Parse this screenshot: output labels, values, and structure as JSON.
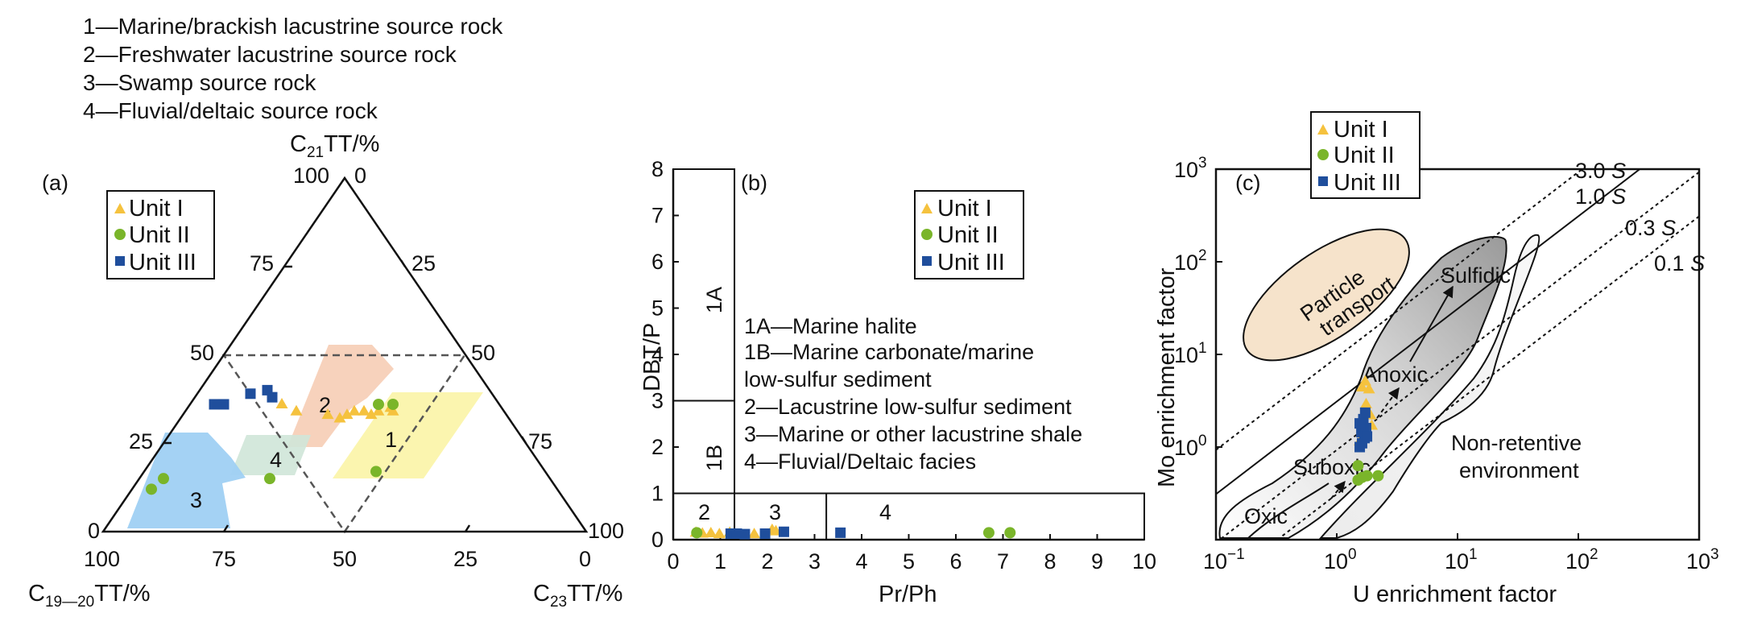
{
  "header": {
    "definitions": [
      "1—Marine/brackish lacustrine source rock",
      "2—Freshwater lacustrine source rock",
      "3—Swamp source rock",
      "4—Fluvial/deltaic source rock"
    ]
  },
  "legend": {
    "unit1": "Unit I",
    "unit2": "Unit II",
    "unit3": "Unit III"
  },
  "colors": {
    "unit1": "#f5c23e",
    "unit2": "#7ab52a",
    "unit3": "#1f4e9c",
    "field1": "#fbf4a6",
    "field2": "#f6cdb5",
    "field3": "#9fd0f3",
    "field4": "#cfe6d8"
  },
  "chart_data": [
    {
      "type": "scatter",
      "panel": "(a)",
      "projection": "ternary",
      "axes": {
        "top": "C21TT/%",
        "left": "C19—20TT/%",
        "right": "C23TT/%"
      },
      "axis_parts": {
        "top_main": "C",
        "top_sub": "21",
        "top_tail": "TT/%",
        "left_main": "C",
        "left_sub": "19—20",
        "left_tail": "TT/%",
        "right_main": "C",
        "right_sub": "23",
        "right_tail": "TT/%"
      },
      "tick_labels": {
        "left_edge": [
          "100",
          "75",
          "50",
          "25",
          "0"
        ],
        "right_edge": [
          "0",
          "25",
          "50",
          "75",
          "100"
        ],
        "bottom_edge": [
          "100",
          "75",
          "50",
          "25",
          "0"
        ]
      },
      "field_labels": [
        "1",
        "2",
        "3",
        "4"
      ],
      "series": [
        {
          "name": "Unit I",
          "points": [
            [
              45,
              36,
              19
            ],
            [
              43,
              34,
              23
            ],
            [
              37,
              33,
              30
            ],
            [
              35,
              32,
              33
            ],
            [
              33,
              33,
              34
            ],
            [
              31,
              34,
              35
            ],
            [
              29,
              34,
              37
            ],
            [
              28,
              33,
              39
            ],
            [
              26,
              34,
              40
            ],
            [
              23,
              34,
              43
            ],
            [
              23,
              35,
              42
            ]
          ]
        },
        {
          "name": "Unit II",
          "points": [
            [
              84,
              12,
              4
            ],
            [
              80,
              15,
              5
            ],
            [
              58,
              15,
              27
            ],
            [
              35,
              17,
              48
            ],
            [
              25,
              36,
              39
            ],
            [
              22,
              36,
              42
            ]
          ]
        },
        {
          "name": "Unit III",
          "points": [
            [
              59,
              36,
              5
            ],
            [
              57,
              36,
              7
            ],
            [
              50,
              39,
              11
            ],
            [
              46,
              38,
              16
            ],
            [
              46,
              40,
              14
            ]
          ]
        }
      ]
    },
    {
      "type": "scatter",
      "panel": "(b)",
      "xlabel": "Pr/Ph",
      "ylabel": "DBT/P",
      "xlim": [
        0,
        10
      ],
      "ylim": [
        0,
        8
      ],
      "x_ticks": [
        "0",
        "1",
        "2",
        "3",
        "4",
        "5",
        "6",
        "7",
        "8",
        "9",
        "10"
      ],
      "y_ticks": [
        "0",
        "1",
        "2",
        "3",
        "4",
        "5",
        "6",
        "7",
        "8"
      ],
      "zones": [
        "1A",
        "1B",
        "2",
        "3",
        "4"
      ],
      "notes": [
        "1A—Marine halite",
        "1B—Marine carbonate/marine",
        "low-sulfur sediment",
        "2—Lacustrine low-sulfur sediment",
        "3—Marine or other lacustrine shale",
        "4—Fluvial/Deltaic facies"
      ],
      "series": [
        {
          "name": "Unit I",
          "points": [
            [
              0.48,
              0.15
            ],
            [
              0.62,
              0.13
            ],
            [
              0.8,
              0.14
            ],
            [
              0.98,
              0.12
            ],
            [
              1.2,
              0.15
            ],
            [
              1.72,
              0.12
            ],
            [
              2.1,
              0.21
            ],
            [
              2.18,
              0.18
            ]
          ]
        },
        {
          "name": "Unit II",
          "points": [
            [
              0.5,
              0.15
            ],
            [
              6.7,
              0.15
            ],
            [
              7.15,
              0.15
            ]
          ]
        },
        {
          "name": "Unit III",
          "points": [
            [
              1.22,
              0.13
            ],
            [
              1.35,
              0.13
            ],
            [
              1.52,
              0.12
            ],
            [
              1.95,
              0.13
            ],
            [
              2.35,
              0.17
            ],
            [
              3.55,
              0.15
            ]
          ]
        }
      ]
    },
    {
      "type": "scatter",
      "panel": "(c)",
      "xlabel": "U enrichment factor",
      "ylabel": "Mo enrichment factor",
      "xscale": "log",
      "yscale": "log",
      "xlim": [
        0.1,
        1000
      ],
      "ylim": [
        0.1,
        1000
      ],
      "x_ticks": [
        {
          "base": "10",
          "exp": "−1"
        },
        {
          "base": "10",
          "exp": "0"
        },
        {
          "base": "10",
          "exp": "1"
        },
        {
          "base": "10",
          "exp": "2"
        },
        {
          "base": "10",
          "exp": "3"
        }
      ],
      "y_ticks": [
        {
          "base": "10",
          "exp": "0"
        },
        {
          "base": "10",
          "exp": "1"
        },
        {
          "base": "10",
          "exp": "2"
        },
        {
          "base": "10",
          "exp": "3"
        }
      ],
      "reference_lines": [
        {
          "label": "3.0",
          "factor": 3.0
        },
        {
          "label": "1.0",
          "factor": 1.0
        },
        {
          "label": "0.3",
          "factor": 0.3
        },
        {
          "label": "0.1",
          "factor": 0.1
        }
      ],
      "sw_symbol": "S",
      "regions": {
        "particle": "Particle",
        "transport": "transport",
        "sulfidic": "Sulfidic",
        "anoxic": "Anoxic",
        "suboxic": "Suboxic",
        "oxic": "Oxic",
        "nonretentive_1": "Non-retentive",
        "nonretentive_2": "environment"
      },
      "series": [
        {
          "name": "Unit I",
          "points": [
            [
              1.62,
              4.4
            ],
            [
              1.72,
              5.1
            ],
            [
              1.85,
              4.2
            ],
            [
              1.75,
              2.9
            ],
            [
              1.9,
              2.2
            ],
            [
              1.6,
              1.8
            ],
            [
              1.75,
              1.4
            ],
            [
              1.95,
              1.7
            ],
            [
              1.55,
              1.15
            ]
          ]
        },
        {
          "name": "Unit II",
          "points": [
            [
              1.5,
              0.63
            ],
            [
              1.62,
              0.47
            ],
            [
              1.78,
              0.49
            ],
            [
              2.2,
              0.49
            ],
            [
              1.5,
              0.44
            ]
          ]
        },
        {
          "name": "Unit III",
          "points": [
            [
              1.55,
              1.0
            ],
            [
              1.62,
              1.1
            ],
            [
              1.7,
              1.25
            ],
            [
              1.6,
              1.45
            ],
            [
              1.75,
              1.6
            ],
            [
              1.66,
              2.0
            ],
            [
              1.72,
              2.35
            ],
            [
              1.55,
              1.8
            ],
            [
              1.78,
              1.3
            ]
          ]
        }
      ]
    }
  ]
}
